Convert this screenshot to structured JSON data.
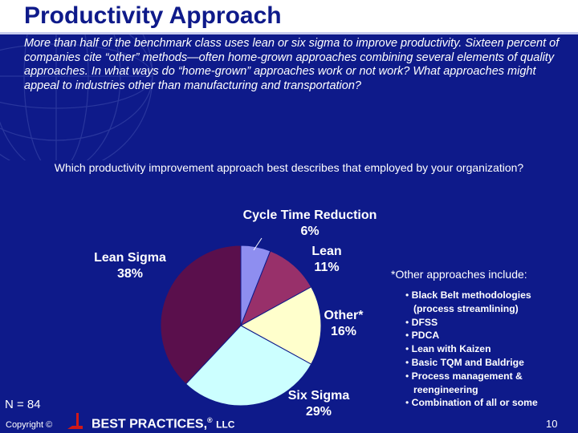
{
  "title": "Productivity Approach",
  "intro": "More than half of the benchmark class uses lean or six sigma to improve productivity. Sixteen percent of companies cite “other” methods—often home-grown approaches combining several elements of quality approaches. In what ways do “home-grown” approaches work or not work? What approaches might appeal to industries other than manufacturing and transportation?",
  "question": "Which productivity improvement approach best describes that employed by your organization?",
  "chart_data": {
    "type": "pie",
    "slices": [
      {
        "name": "Cycle Time Reduction",
        "value": 6,
        "label": "6%",
        "color": "#8e8ef0"
      },
      {
        "name": "Lean",
        "value": 11,
        "label": "11%",
        "color": "#98306a"
      },
      {
        "name": "Other*",
        "value": 16,
        "label": "16%",
        "color": "#ffffcc"
      },
      {
        "name": "Six Sigma",
        "value": 29,
        "label": "29%",
        "color": "#ccffff"
      },
      {
        "name": "Lean Sigma",
        "value": 38,
        "label": "38%",
        "color": "#5a0f4c"
      }
    ]
  },
  "other_note": {
    "header": "*Other approaches include:",
    "items": [
      "Black Belt methodologies (process streamlining)",
      "DFSS",
      "PDCA",
      "Lean with Kaizen",
      "Basic TQM and Baldrige",
      "Process management & reengineering",
      "Combination of all or some"
    ]
  },
  "sample_size": "N = 84",
  "footer": {
    "copyright": "Copyright ©",
    "company": "BEST PRACTICES,",
    "registered": "®",
    "suffix": "LLC",
    "page_number": "10"
  }
}
